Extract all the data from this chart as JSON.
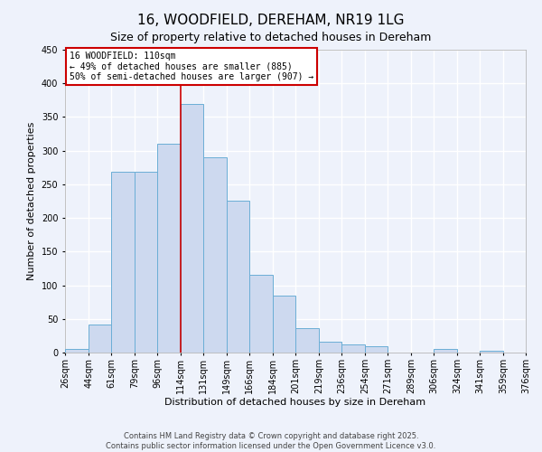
{
  "title": "16, WOODFIELD, DEREHAM, NR19 1LG",
  "subtitle": "Size of property relative to detached houses in Dereham",
  "xlabel": "Distribution of detached houses by size in Dereham",
  "ylabel": "Number of detached properties",
  "bar_values": [
    5,
    41,
    268,
    268,
    310,
    370,
    290,
    226,
    115,
    84,
    36,
    16,
    12,
    10,
    0,
    0,
    5,
    0,
    3,
    0,
    0
  ],
  "bin_labels": [
    "26sqm",
    "44sqm",
    "61sqm",
    "79sqm",
    "96sqm",
    "114sqm",
    "131sqm",
    "149sqm",
    "166sqm",
    "184sqm",
    "201sqm",
    "219sqm",
    "236sqm",
    "254sqm",
    "271sqm",
    "289sqm",
    "306sqm",
    "324sqm",
    "341sqm",
    "359sqm",
    "376sqm"
  ],
  "bin_edges": [
    26,
    44,
    61,
    79,
    96,
    114,
    131,
    149,
    166,
    184,
    201,
    219,
    236,
    254,
    271,
    289,
    306,
    324,
    341,
    359,
    376
  ],
  "bar_color": "#cdd9ef",
  "bar_edge_color": "#6baed6",
  "vline_x": 114,
  "vline_color": "#cc0000",
  "ylim": [
    0,
    450
  ],
  "annotation_title": "16 WOODFIELD: 110sqm",
  "annotation_line1": "← 49% of detached houses are smaller (885)",
  "annotation_line2": "50% of semi-detached houses are larger (907) →",
  "annotation_box_color": "#ffffff",
  "annotation_box_edge": "#cc0000",
  "footer1": "Contains HM Land Registry data © Crown copyright and database right 2025.",
  "footer2": "Contains public sector information licensed under the Open Government Licence v3.0.",
  "background_color": "#eef2fb",
  "grid_color": "#ffffff",
  "title_fontsize": 11,
  "subtitle_fontsize": 9,
  "axis_label_fontsize": 8,
  "tick_fontsize": 7,
  "footer_fontsize": 6
}
